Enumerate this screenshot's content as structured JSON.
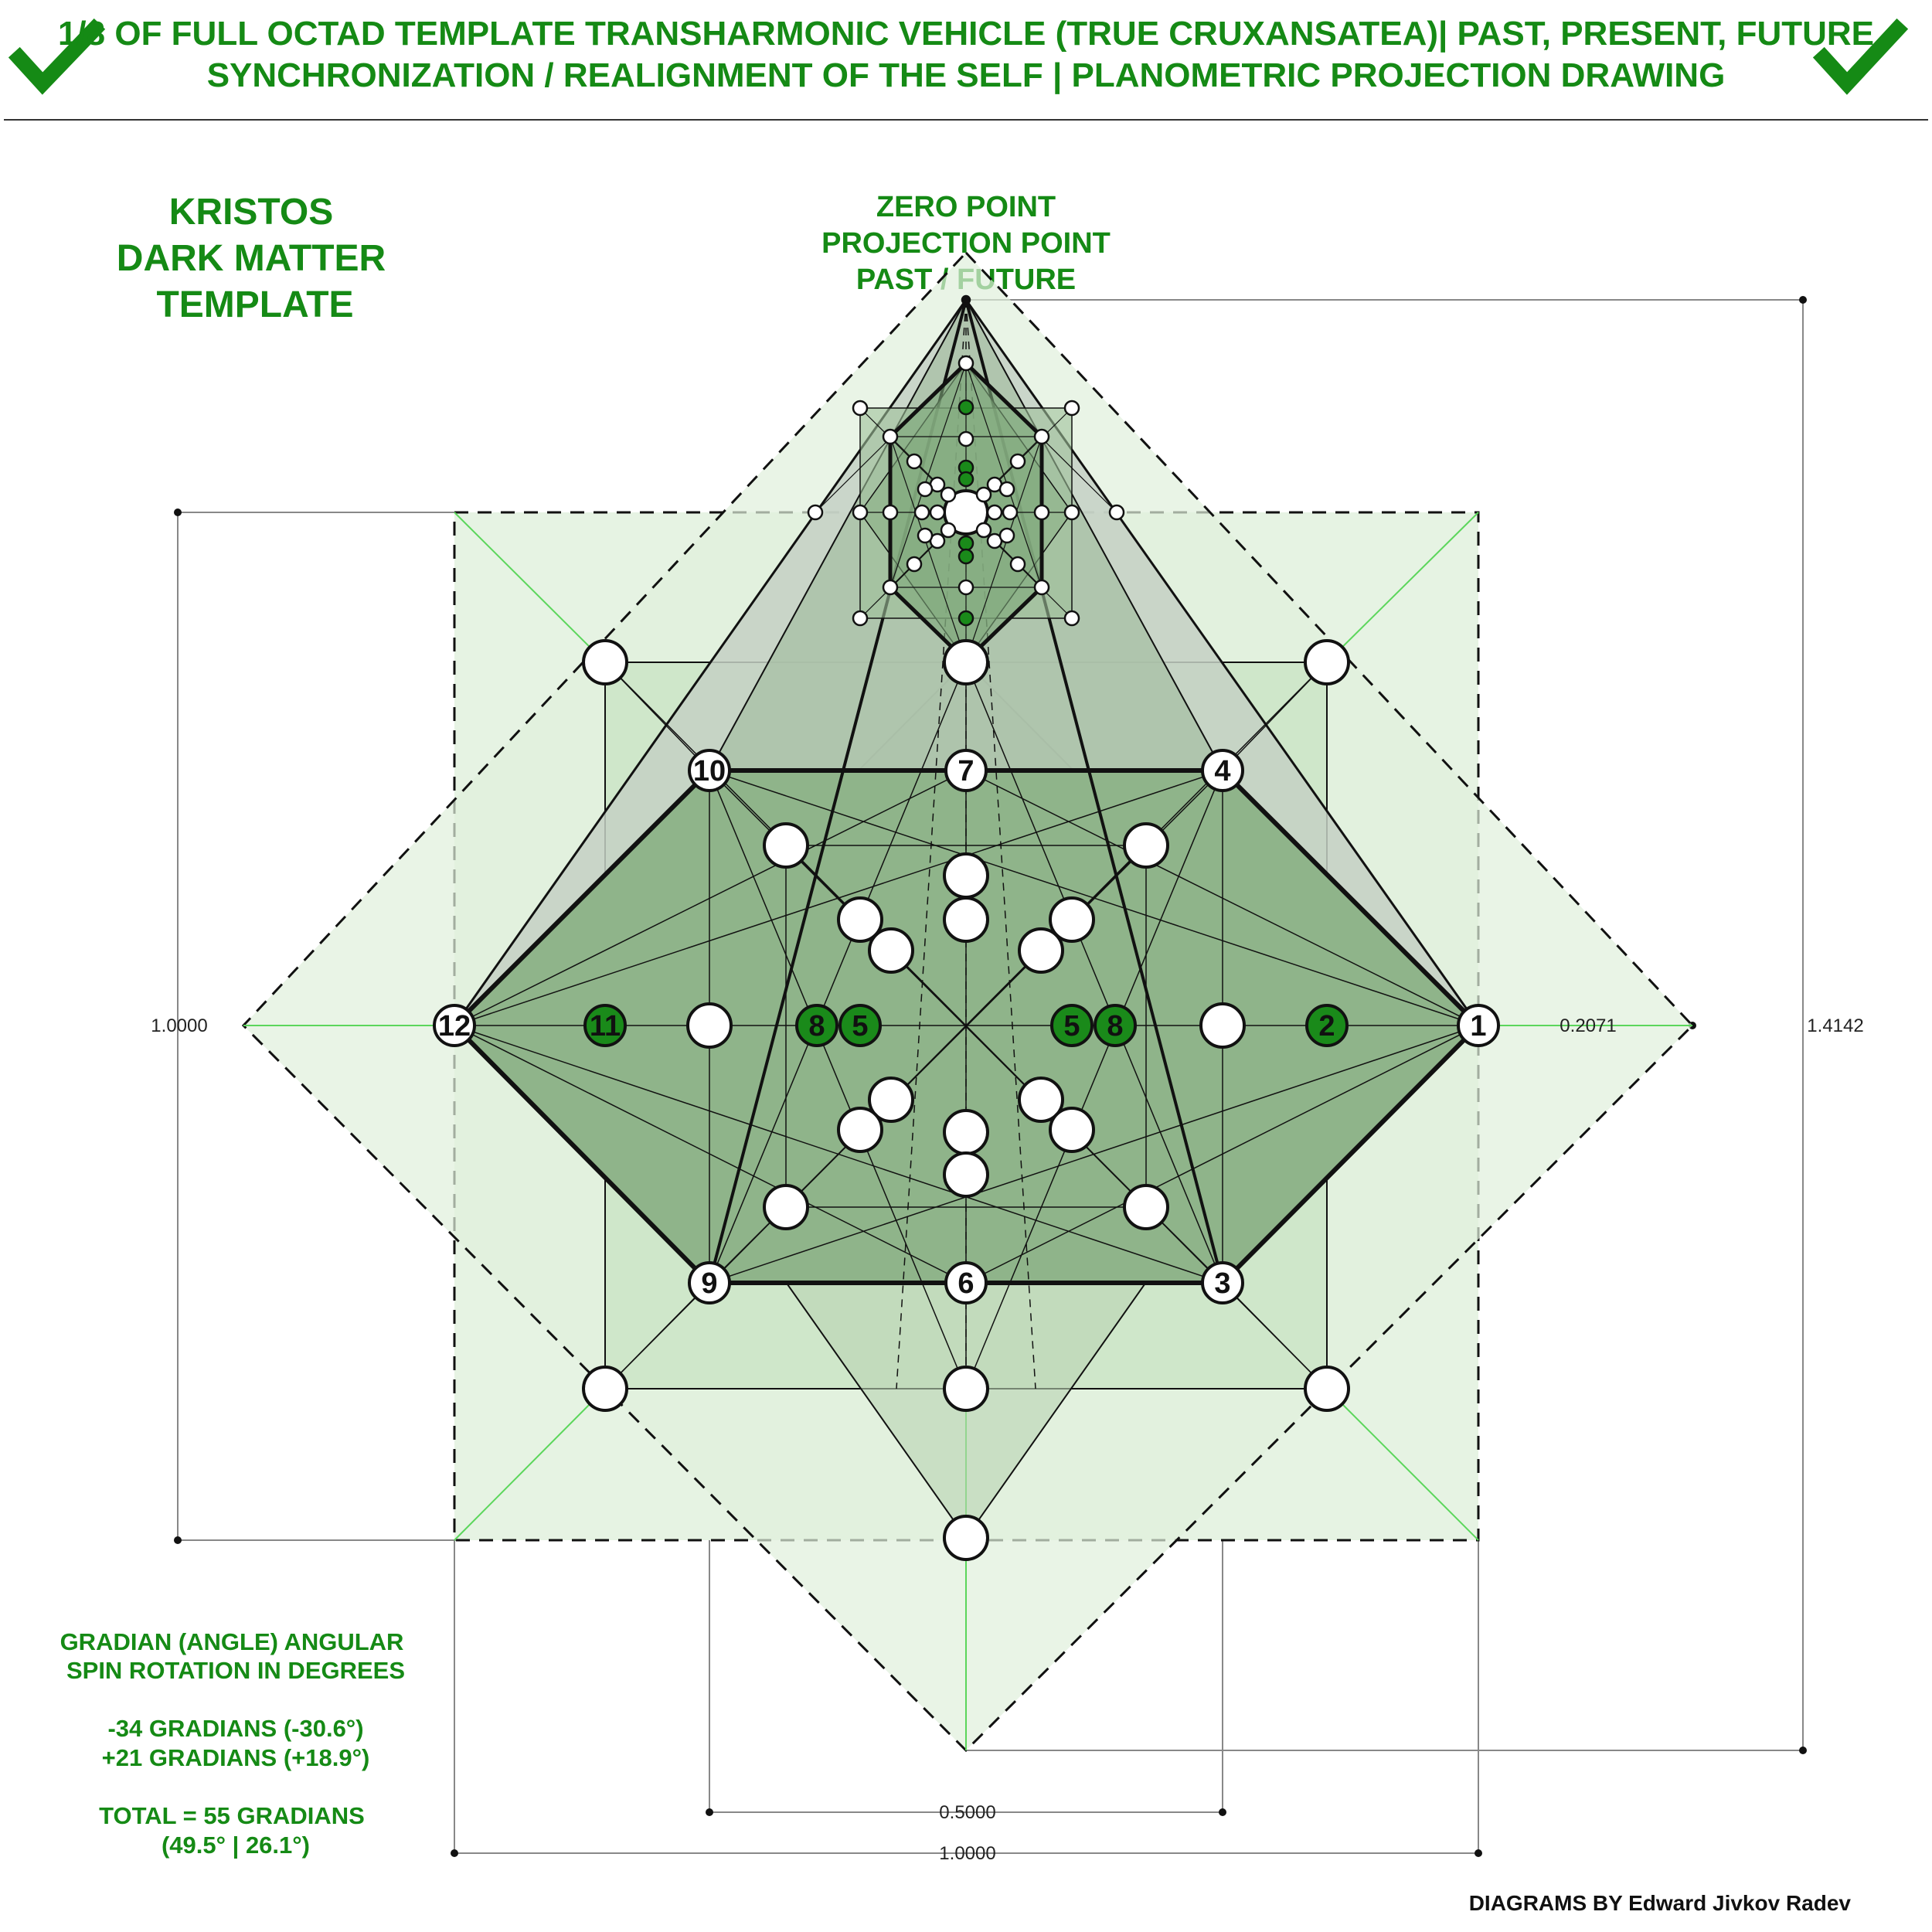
{
  "header": {
    "title_line1": "1/8 OF FULL OCTAD TEMPLATE TRANSHARMONIC VEHICLE (TRUE CRUXANSATEA)| PAST, PRESENT, FUTURE",
    "title_line2": "SYNCHRONIZATION / REALIGNMENT OF THE SELF | PLANOMETRIC PROJECTION DRAWING",
    "check_icon": "checkmark-icon",
    "accent_color": "#158a15"
  },
  "left_title": [
    "KRISTOS",
    "DARK MATTER",
    "TEMPLATE"
  ],
  "top_label": [
    "ZERO POINT",
    "PROJECTION POINT",
    "PAST / FUTURE"
  ],
  "notes": {
    "line1": "GRADIAN (ANGLE) ANGULAR",
    "line2": "SPIN ROTATION IN DEGREES",
    "line3": "-34 GRADIANS (-30.6°)",
    "line4": "+21 GRADIANS (+18.9°)",
    "line5": "TOTAL = 55 GRADIANS",
    "line6": "(49.5° | 26.1°)"
  },
  "dimensions": {
    "left": "1.0000",
    "right_inner": "0.2071",
    "right_outer": "1.4142",
    "bottom_inner": "0.5000",
    "bottom_outer": "1.0000"
  },
  "node_labels": {
    "n1": "1",
    "n2": "2",
    "n3": "3",
    "n4": "4",
    "n5a": "5",
    "n5b": "5",
    "n6": "6",
    "n7": "7",
    "n8a": "8",
    "n8b": "8",
    "n9": "9",
    "n10": "10",
    "n11": "11",
    "n12": "12"
  },
  "colors": {
    "light_green": "#d6ecd2",
    "mid_green": "#b9d4b3",
    "dark_green": "#8fb48a",
    "node_green": "#1a8a1a",
    "grey_fill": "#c4d0c4"
  },
  "credit": "DIAGRAMS BY Edward Jivkov Radev"
}
